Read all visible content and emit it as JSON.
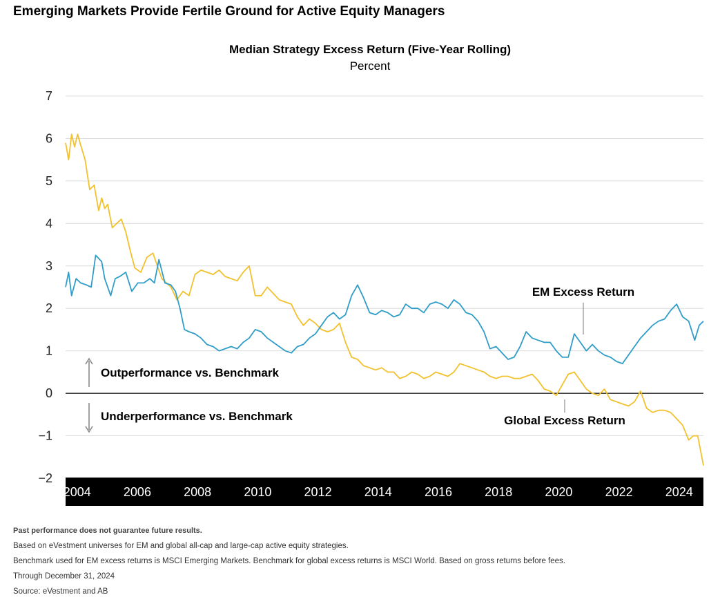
{
  "headline": "Emerging Markets Provide Fertile Ground for Active Equity Managers",
  "chart_data": {
    "type": "line",
    "title": "Median Strategy Excess Return (Five-Year Rolling)",
    "subtitle": "Percent",
    "ylim": [
      -2,
      7
    ],
    "y_ticks": [
      "7",
      "6",
      "5",
      "4",
      "3",
      "2",
      "1",
      "0",
      "−1",
      "−2"
    ],
    "y_tick_values": [
      7,
      6,
      5,
      4,
      3,
      2,
      1,
      0,
      -1,
      -2
    ],
    "x_ticks": [
      "2004",
      "2006",
      "2008",
      "2010",
      "2012",
      "2014",
      "2016",
      "2018",
      "2020",
      "2022",
      "2024"
    ],
    "x_tick_values": [
      2004,
      2006,
      2008,
      2010,
      2012,
      2014,
      2016,
      2018,
      2020,
      2022,
      2024
    ],
    "xlim": [
      2003.8,
      2024.99
    ],
    "grid": true,
    "series": [
      {
        "name": "EM Excess Return",
        "color": "#2f9dc8",
        "x": [
          2003.8,
          2003.9,
          2004.0,
          2004.15,
          2004.3,
          2004.5,
          2004.65,
          2004.8,
          2005.0,
          2005.1,
          2005.3,
          2005.45,
          2005.6,
          2005.8,
          2006.0,
          2006.2,
          2006.4,
          2006.6,
          2006.75,
          2006.9,
          2007.1,
          2007.3,
          2007.45,
          2007.6,
          2007.75,
          2007.9,
          2008.1,
          2008.3,
          2008.5,
          2008.7,
          2008.9,
          2009.1,
          2009.3,
          2009.5,
          2009.7,
          2009.9,
          2010.1,
          2010.3,
          2010.5,
          2010.7,
          2010.9,
          2011.1,
          2011.3,
          2011.5,
          2011.7,
          2011.9,
          2012.1,
          2012.3,
          2012.5,
          2012.7,
          2012.9,
          2013.1,
          2013.3,
          2013.5,
          2013.7,
          2013.9,
          2014.1,
          2014.3,
          2014.5,
          2014.7,
          2014.9,
          2015.1,
          2015.3,
          2015.5,
          2015.7,
          2015.9,
          2016.1,
          2016.3,
          2016.5,
          2016.7,
          2016.9,
          2017.1,
          2017.3,
          2017.5,
          2017.7,
          2017.9,
          2018.1,
          2018.3,
          2018.5,
          2018.7,
          2018.9,
          2019.1,
          2019.3,
          2019.5,
          2019.7,
          2019.9,
          2020.1,
          2020.3,
          2020.5,
          2020.7,
          2020.9,
          2021.1,
          2021.3,
          2021.5,
          2021.7,
          2021.9,
          2022.1,
          2022.3,
          2022.5,
          2022.7,
          2022.9,
          2023.1,
          2023.3,
          2023.5,
          2023.7,
          2023.9,
          2024.1,
          2024.3,
          2024.5,
          2024.7,
          2024.85,
          2024.99
        ],
        "y": [
          2.5,
          2.85,
          2.3,
          2.7,
          2.6,
          2.55,
          2.5,
          3.25,
          3.1,
          2.7,
          2.3,
          2.7,
          2.75,
          2.85,
          2.4,
          2.6,
          2.6,
          2.7,
          2.6,
          3.15,
          2.6,
          2.55,
          2.4,
          2.0,
          1.5,
          1.45,
          1.4,
          1.3,
          1.15,
          1.1,
          1.0,
          1.05,
          1.1,
          1.05,
          1.2,
          1.3,
          1.5,
          1.45,
          1.3,
          1.2,
          1.1,
          1.0,
          0.95,
          1.1,
          1.15,
          1.3,
          1.4,
          1.6,
          1.8,
          1.9,
          1.75,
          1.85,
          2.3,
          2.55,
          2.25,
          1.9,
          1.85,
          1.95,
          1.9,
          1.8,
          1.85,
          2.1,
          2.0,
          2.0,
          1.9,
          2.1,
          2.15,
          2.1,
          2.0,
          2.2,
          2.1,
          1.9,
          1.85,
          1.7,
          1.45,
          1.05,
          1.1,
          0.95,
          0.8,
          0.85,
          1.1,
          1.45,
          1.3,
          1.25,
          1.2,
          1.2,
          1.0,
          0.85,
          0.85,
          1.4,
          1.2,
          1.0,
          1.15,
          1.0,
          0.9,
          0.85,
          0.75,
          0.7,
          0.9,
          1.1,
          1.3,
          1.45,
          1.6,
          1.7,
          1.75,
          1.95,
          2.1,
          1.8,
          1.7,
          1.25,
          1.6,
          1.7
        ]
      },
      {
        "name": "Global Excess Return",
        "color": "#f2c12e",
        "x": [
          2003.8,
          2003.9,
          2004.0,
          2004.1,
          2004.2,
          2004.3,
          2004.45,
          2004.6,
          2004.75,
          2004.9,
          2005.0,
          2005.1,
          2005.2,
          2005.35,
          2005.5,
          2005.65,
          2005.8,
          2005.95,
          2006.1,
          2006.3,
          2006.5,
          2006.7,
          2006.85,
          2007.0,
          2007.15,
          2007.3,
          2007.5,
          2007.7,
          2007.9,
          2008.1,
          2008.3,
          2008.5,
          2008.7,
          2008.9,
          2009.1,
          2009.3,
          2009.5,
          2009.7,
          2009.9,
          2010.1,
          2010.3,
          2010.5,
          2010.7,
          2010.9,
          2011.1,
          2011.3,
          2011.5,
          2011.7,
          2011.9,
          2012.1,
          2012.3,
          2012.5,
          2012.7,
          2012.9,
          2013.1,
          2013.3,
          2013.5,
          2013.7,
          2013.9,
          2014.1,
          2014.3,
          2014.5,
          2014.7,
          2014.9,
          2015.1,
          2015.3,
          2015.5,
          2015.7,
          2015.9,
          2016.1,
          2016.3,
          2016.5,
          2016.7,
          2016.9,
          2017.1,
          2017.3,
          2017.5,
          2017.7,
          2017.9,
          2018.1,
          2018.3,
          2018.5,
          2018.7,
          2018.9,
          2019.1,
          2019.3,
          2019.5,
          2019.7,
          2019.9,
          2020.1,
          2020.3,
          2020.5,
          2020.7,
          2020.9,
          2021.1,
          2021.3,
          2021.5,
          2021.7,
          2021.9,
          2022.1,
          2022.3,
          2022.5,
          2022.7,
          2022.9,
          2023.1,
          2023.3,
          2023.5,
          2023.7,
          2023.9,
          2024.1,
          2024.3,
          2024.5,
          2024.65,
          2024.8,
          2024.99
        ],
        "y": [
          5.9,
          5.5,
          6.1,
          5.8,
          6.1,
          5.85,
          5.5,
          4.8,
          4.9,
          4.3,
          4.6,
          4.35,
          4.45,
          3.9,
          4.0,
          4.1,
          3.8,
          3.35,
          2.95,
          2.85,
          3.2,
          3.3,
          3.0,
          2.7,
          2.6,
          2.5,
          2.2,
          2.4,
          2.3,
          2.8,
          2.9,
          2.85,
          2.8,
          2.9,
          2.75,
          2.7,
          2.65,
          2.85,
          3.0,
          2.3,
          2.3,
          2.5,
          2.35,
          2.2,
          2.15,
          2.1,
          1.8,
          1.6,
          1.75,
          1.65,
          1.5,
          1.45,
          1.5,
          1.65,
          1.2,
          0.85,
          0.8,
          0.65,
          0.6,
          0.55,
          0.6,
          0.5,
          0.5,
          0.35,
          0.4,
          0.5,
          0.45,
          0.35,
          0.4,
          0.5,
          0.45,
          0.4,
          0.5,
          0.7,
          0.65,
          0.6,
          0.55,
          0.5,
          0.4,
          0.35,
          0.4,
          0.4,
          0.35,
          0.35,
          0.4,
          0.45,
          0.3,
          0.1,
          0.05,
          -0.05,
          0.2,
          0.45,
          0.5,
          0.3,
          0.1,
          0.0,
          -0.05,
          0.1,
          -0.15,
          -0.2,
          -0.25,
          -0.3,
          -0.2,
          0.05,
          -0.35,
          -0.45,
          -0.4,
          -0.4,
          -0.45,
          -0.6,
          -0.75,
          -1.1,
          -1.0,
          -1.0,
          -1.7
        ]
      }
    ]
  },
  "annotations": {
    "em_label": "EM Excess Return",
    "global_label": "Global Excess Return",
    "outperformance": "Outperformance vs. Benchmark",
    "underperformance": "Underperformance vs. Benchmark"
  },
  "notes": [
    "Past performance does not guarantee future results.",
    "Based on eVestment universes for EM and global all-cap and large-cap active equity strategies.",
    "Benchmark used for EM excess returns is MSCI Emerging Markets. Benchmark for global excess returns is MSCI World. Based on gross returns before fees.",
    "Through December 31, 2024",
    "Source: eVestment and AB"
  ]
}
